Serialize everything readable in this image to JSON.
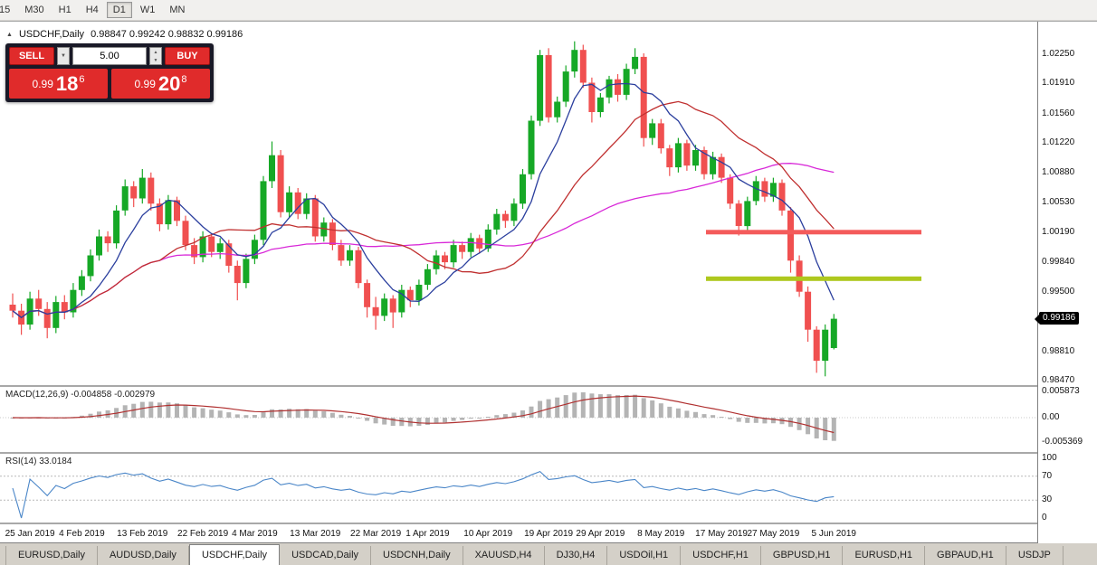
{
  "toolbar": {
    "timeframes": [
      "15",
      "M30",
      "H1",
      "H4",
      "D1",
      "W1",
      "MN"
    ],
    "active": "D1"
  },
  "icons": {
    "collapse": "▲",
    "dropdown": "▼",
    "spin_up": "▲",
    "spin_down": "▼"
  },
  "symbol_header": {
    "symbol": "USDCHF,Daily",
    "ohlc": "0.98847 0.99242 0.98832 0.99186"
  },
  "trade_panel": {
    "sell_label": "SELL",
    "buy_label": "BUY",
    "volume": "5.00",
    "sell_price": {
      "base": "0.99",
      "pips": "18",
      "frac": "6"
    },
    "buy_price": {
      "base": "0.99",
      "pips": "20",
      "frac": "8"
    }
  },
  "price_axis": {
    "labels": [
      "1.02250",
      "1.01910",
      "1.01560",
      "1.01220",
      "1.00880",
      "1.00530",
      "1.00190",
      "0.99840",
      "0.99500",
      "0.98810",
      "0.98470"
    ],
    "current": "0.99186"
  },
  "macd_panel": {
    "label": "MACD(12,26,9) -0.004858 -0.002979",
    "axis_labels": [
      "0.005873",
      "0.00",
      "-0.005369"
    ]
  },
  "rsi_panel": {
    "label": "RSI(14) 33.0184",
    "axis_labels": [
      "100",
      "70",
      "30",
      "0"
    ],
    "levels": [
      70,
      30
    ]
  },
  "date_axis": [
    {
      "text": "25 Jan 2019",
      "i": 2
    },
    {
      "text": "4 Feb 2019",
      "i": 8
    },
    {
      "text": "13 Feb 2019",
      "i": 15
    },
    {
      "text": "22 Feb 2019",
      "i": 22
    },
    {
      "text": "4 Mar 2019",
      "i": 28
    },
    {
      "text": "13 Mar 2019",
      "i": 35
    },
    {
      "text": "22 Mar 2019",
      "i": 42
    },
    {
      "text": "1 Apr 2019",
      "i": 48
    },
    {
      "text": "10 Apr 2019",
      "i": 55
    },
    {
      "text": "19 Apr 2019",
      "i": 62
    },
    {
      "text": "29 Apr 2019",
      "i": 68
    },
    {
      "text": "8 May 2019",
      "i": 75
    },
    {
      "text": "17 May 2019",
      "i": 82
    },
    {
      "text": "27 May 2019",
      "i": 88
    },
    {
      "text": "5 Jun 2019",
      "i": 95
    }
  ],
  "tabs": {
    "items": [
      "EURUSD,Daily",
      "AUDUSD,Daily",
      "USDCHF,Daily",
      "USDCAD,Daily",
      "USDCNH,Daily",
      "XAUUSD,H4",
      "DJ30,H4",
      "USDOil,H1",
      "USDCHF,H1",
      "GBPUSD,H1",
      "EURUSD,H1",
      "GBPAUD,H1",
      "USDJP"
    ],
    "active": "USDCHF,Daily"
  },
  "colors": {
    "bull": "#16a826",
    "bear": "#f05050",
    "ma_fast": "#2b3f9e",
    "ma_mid": "#c03030",
    "ma_slow": "#d828d8",
    "macd_hist": "#b4b4b4",
    "macd_signal": "#b03030",
    "rsi": "#4a86c8",
    "resistance": "#f45b5b",
    "support": "#aec81e",
    "price_tag_bg": "#000000"
  },
  "chart_data": {
    "type": "candlestick",
    "title": "USDCHF,Daily",
    "ylim": [
      0.9842,
      1.0247
    ],
    "ma_periods": [
      7,
      18,
      42
    ],
    "macd_params": [
      12,
      26,
      9
    ],
    "rsi_period": 14,
    "hlines": [
      {
        "price": 1.0019,
        "role": "resistance"
      },
      {
        "price": 0.9965,
        "role": "support"
      }
    ],
    "ohlc": [
      [
        0.9935,
        0.9948,
        0.992,
        0.9928
      ],
      [
        0.9928,
        0.9936,
        0.99,
        0.9912
      ],
      [
        0.9912,
        0.995,
        0.9906,
        0.9942
      ],
      [
        0.9942,
        0.9952,
        0.9922,
        0.993
      ],
      [
        0.993,
        0.9938,
        0.9896,
        0.9908
      ],
      [
        0.9908,
        0.9945,
        0.9902,
        0.9938
      ],
      [
        0.9938,
        0.9946,
        0.9918,
        0.9926
      ],
      [
        0.9926,
        0.996,
        0.992,
        0.9952
      ],
      [
        0.9952,
        0.9975,
        0.9945,
        0.9968
      ],
      [
        0.9968,
        0.9999,
        0.9962,
        0.9992
      ],
      [
        0.9992,
        1.0022,
        0.9986,
        1.0014
      ],
      [
        1.0014,
        1.002,
        0.9996,
        1.0006
      ],
      [
        1.0006,
        1.005,
        1.0,
        1.0044
      ],
      [
        1.0044,
        1.008,
        1.0038,
        1.0072
      ],
      [
        1.0072,
        1.0078,
        1.0048,
        1.0058
      ],
      [
        1.0058,
        1.0092,
        1.0052,
        1.0082
      ],
      [
        1.0082,
        1.0088,
        1.0044,
        1.0052
      ],
      [
        1.0052,
        1.0058,
        1.002,
        1.0028
      ],
      [
        1.0028,
        1.0062,
        1.0022,
        1.0056
      ],
      [
        1.0056,
        1.006,
        1.0026,
        1.0032
      ],
      [
        1.0032,
        1.0038,
        0.9998,
        1.0004
      ],
      [
        1.0004,
        1.0012,
        0.9982,
        0.999
      ],
      [
        0.999,
        1.002,
        0.9984,
        1.0014
      ],
      [
        1.0014,
        1.0018,
        0.999,
        0.9996
      ],
      [
        0.9996,
        1.0012,
        0.9988,
        1.0006
      ],
      [
        1.0006,
        1.001,
        0.9972,
        0.998
      ],
      [
        0.998,
        0.9986,
        0.994,
        0.996
      ],
      [
        0.996,
        0.9994,
        0.9954,
        0.9988
      ],
      [
        0.9988,
        1.0016,
        0.9982,
        1.001
      ],
      [
        1.001,
        1.0084,
        1.0004,
        1.0078
      ],
      [
        1.0078,
        1.0124,
        1.007,
        1.0108
      ],
      [
        1.0108,
        1.0114,
        1.0036,
        1.0042
      ],
      [
        1.0042,
        1.0072,
        1.0036,
        1.0065
      ],
      [
        1.0065,
        1.007,
        1.0034,
        1.004
      ],
      [
        1.004,
        1.0064,
        1.0034,
        1.0058
      ],
      [
        1.0058,
        1.0062,
        1.0008,
        1.0014
      ],
      [
        1.0014,
        1.0036,
        1.0008,
        1.003
      ],
      [
        1.003,
        1.0034,
        0.9998,
        1.0004
      ],
      [
        1.0004,
        1.001,
        0.998,
        0.9986
      ],
      [
        0.9986,
        1.0004,
        0.998,
        0.9998
      ],
      [
        0.9998,
        1.0002,
        0.9954,
        0.996
      ],
      [
        0.996,
        0.9964,
        0.992,
        0.9932
      ],
      [
        0.9932,
        0.9944,
        0.9906,
        0.9922
      ],
      [
        0.9922,
        0.9948,
        0.9916,
        0.9942
      ],
      [
        0.9942,
        0.9946,
        0.9908,
        0.9926
      ],
      [
        0.9926,
        0.9958,
        0.992,
        0.9952
      ],
      [
        0.9952,
        0.9956,
        0.9932,
        0.994
      ],
      [
        0.994,
        0.9964,
        0.9934,
        0.9958
      ],
      [
        0.9958,
        0.9982,
        0.9952,
        0.9976
      ],
      [
        0.9976,
        0.9998,
        0.997,
        0.9992
      ],
      [
        0.9992,
        0.9996,
        0.9976,
        0.9984
      ],
      [
        0.9984,
        1.001,
        0.9978,
        1.0004
      ],
      [
        1.0004,
        1.0008,
        0.9988,
        0.9996
      ],
      [
        0.9996,
        1.0018,
        0.999,
        1.0012
      ],
      [
        1.0012,
        1.0016,
        0.9994,
        1.0
      ],
      [
        1.0,
        1.0028,
        0.9996,
        1.0022
      ],
      [
        1.0022,
        1.0046,
        1.0016,
        1.004
      ],
      [
        1.004,
        1.0044,
        1.0024,
        1.0032
      ],
      [
        1.0032,
        1.0058,
        1.0026,
        1.0052
      ],
      [
        1.0052,
        1.0092,
        1.0046,
        1.0086
      ],
      [
        1.0086,
        1.0154,
        1.008,
        1.0148
      ],
      [
        1.0148,
        1.023,
        1.0142,
        1.0224
      ],
      [
        1.0224,
        1.0232,
        1.0146,
        1.0152
      ],
      [
        1.0152,
        1.0176,
        1.0146,
        1.017
      ],
      [
        1.017,
        1.0212,
        1.0164,
        1.0205
      ],
      [
        1.0205,
        1.024,
        1.0198,
        1.023
      ],
      [
        1.023,
        1.0236,
        1.0186,
        1.0192
      ],
      [
        1.0192,
        1.0198,
        1.0146,
        1.0158
      ],
      [
        1.0158,
        1.018,
        1.0152,
        1.0175
      ],
      [
        1.0175,
        1.02,
        1.0168,
        1.0196
      ],
      [
        1.0196,
        1.0202,
        1.017,
        1.0178
      ],
      [
        1.0178,
        1.0214,
        1.0172,
        1.0208
      ],
      [
        1.0208,
        1.0232,
        1.0202,
        1.0222
      ],
      [
        1.0222,
        1.0226,
        1.0118,
        1.0128
      ],
      [
        1.0128,
        1.015,
        1.012,
        1.0145
      ],
      [
        1.0145,
        1.015,
        1.011,
        1.0116
      ],
      [
        1.0116,
        1.012,
        1.0084,
        1.0094
      ],
      [
        1.0094,
        1.0128,
        1.0088,
        1.0122
      ],
      [
        1.0122,
        1.0126,
        1.009,
        1.0096
      ],
      [
        1.0096,
        1.012,
        1.009,
        1.0114
      ],
      [
        1.0114,
        1.0118,
        1.008,
        1.0086
      ],
      [
        1.0086,
        1.0112,
        1.008,
        1.0106
      ],
      [
        1.0106,
        1.011,
        1.0076,
        1.0082
      ],
      [
        1.0082,
        1.0086,
        1.0046,
        1.0052
      ],
      [
        1.0052,
        1.0056,
        1.0015,
        1.0026
      ],
      [
        1.0026,
        1.006,
        1.002,
        1.0055
      ],
      [
        1.0055,
        1.0084,
        1.005,
        1.0078
      ],
      [
        1.0078,
        1.0082,
        1.0054,
        1.006
      ],
      [
        1.006,
        1.0082,
        1.0054,
        1.0076
      ],
      [
        1.0076,
        1.008,
        1.0038,
        1.0044
      ],
      [
        1.0044,
        1.0048,
        0.9972,
        0.9986
      ],
      [
        0.9986,
        0.9992,
        0.9944,
        0.995
      ],
      [
        0.995,
        0.9956,
        0.9892,
        0.9906
      ],
      [
        0.9906,
        0.991,
        0.9856,
        0.987
      ],
      [
        0.987,
        0.9912,
        0.9852,
        0.9906
      ],
      [
        0.98847,
        0.99242,
        0.98832,
        0.99186
      ]
    ]
  }
}
